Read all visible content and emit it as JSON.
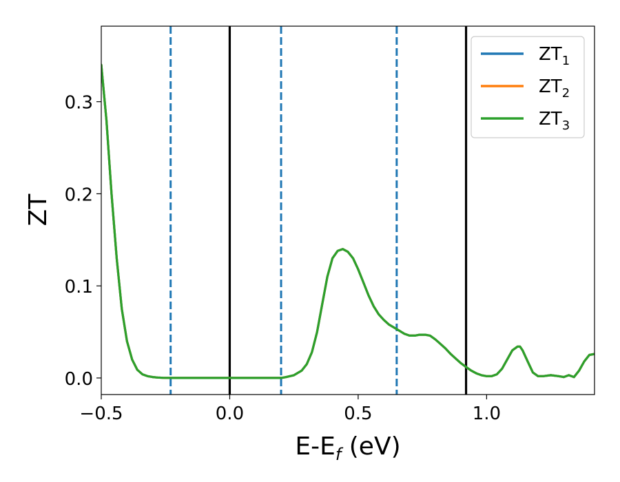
{
  "chart_data": {
    "type": "line",
    "xlabel_main": "E-E",
    "xlabel_sub": "f",
    "xlabel_tail": " (eV)",
    "ylabel": "ZT",
    "xlim": [
      -0.5,
      1.42
    ],
    "ylim": [
      -0.018,
      0.382
    ],
    "x_ticks": [
      {
        "value": -0.5,
        "label": "−0.5"
      },
      {
        "value": 0.0,
        "label": "0.0"
      },
      {
        "value": 0.5,
        "label": "0.5"
      },
      {
        "value": 1.0,
        "label": "1.0"
      }
    ],
    "y_ticks": [
      {
        "value": 0.0,
        "label": "0.0"
      },
      {
        "value": 0.1,
        "label": "0.1"
      },
      {
        "value": 0.2,
        "label": "0.2"
      },
      {
        "value": 0.3,
        "label": "0.3"
      }
    ],
    "grid": false,
    "legend_position": "top-right",
    "vlines": [
      {
        "x": -0.23,
        "style": "dashed",
        "color": "#1f77b4"
      },
      {
        "x": 0.0,
        "style": "solid",
        "color": "#000000"
      },
      {
        "x": 0.2,
        "style": "dashed",
        "color": "#1f77b4"
      },
      {
        "x": 0.65,
        "style": "dashed",
        "color": "#1f77b4"
      },
      {
        "x": 0.92,
        "style": "solid",
        "color": "#000000"
      }
    ],
    "series": [
      {
        "name": "ZT",
        "sub": "1",
        "color": "#1f77b4",
        "x": [
          -0.5,
          -0.48,
          -0.46,
          -0.44,
          -0.42,
          -0.4,
          -0.38,
          -0.36,
          -0.34,
          -0.32,
          -0.3,
          -0.28,
          -0.26,
          -0.24,
          -0.22,
          -0.2,
          -0.1,
          0.0,
          0.1,
          0.2,
          0.22,
          0.25,
          0.28,
          0.3,
          0.32,
          0.34,
          0.36,
          0.38,
          0.4,
          0.42,
          0.44,
          0.46,
          0.48,
          0.5,
          0.52,
          0.54,
          0.56,
          0.58,
          0.6,
          0.62,
          0.65,
          0.68,
          0.7,
          0.72,
          0.74,
          0.76,
          0.78,
          0.8,
          0.82,
          0.84,
          0.86,
          0.88,
          0.9,
          0.92,
          0.94,
          0.96,
          0.98,
          1.0,
          1.02,
          1.04,
          1.06,
          1.08,
          1.1,
          1.12,
          1.13,
          1.14,
          1.16,
          1.18,
          1.2,
          1.22,
          1.25,
          1.28,
          1.3,
          1.32,
          1.34,
          1.36,
          1.38,
          1.4,
          1.42
        ],
        "y": [
          0.34,
          0.28,
          0.2,
          0.13,
          0.075,
          0.04,
          0.02,
          0.009,
          0.004,
          0.002,
          0.001,
          0.0005,
          0.0002,
          0.0001,
          0,
          0,
          0,
          0,
          0,
          0,
          0.001,
          0.003,
          0.008,
          0.015,
          0.028,
          0.05,
          0.08,
          0.11,
          0.13,
          0.138,
          0.14,
          0.137,
          0.13,
          0.118,
          0.104,
          0.09,
          0.078,
          0.069,
          0.063,
          0.058,
          0.053,
          0.048,
          0.046,
          0.046,
          0.047,
          0.047,
          0.046,
          0.042,
          0.037,
          0.032,
          0.026,
          0.021,
          0.016,
          0.012,
          0.008,
          0.005,
          0.003,
          0.002,
          0.002,
          0.004,
          0.01,
          0.02,
          0.03,
          0.034,
          0.034,
          0.03,
          0.018,
          0.006,
          0.002,
          0.002,
          0.003,
          0.002,
          0.001,
          0.003,
          0.001,
          0.008,
          0.018,
          0.025,
          0.026
        ]
      },
      {
        "name": "ZT",
        "sub": "2",
        "color": "#ff7f0e",
        "x": [
          -0.5,
          -0.48,
          -0.46,
          -0.44,
          -0.42,
          -0.4,
          -0.38,
          -0.36,
          -0.34,
          -0.32,
          -0.3,
          -0.28,
          -0.26,
          -0.24,
          -0.22,
          -0.2,
          -0.1,
          0.0,
          0.1,
          0.2,
          0.22,
          0.25,
          0.28,
          0.3,
          0.32,
          0.34,
          0.36,
          0.38,
          0.4,
          0.42,
          0.44,
          0.46,
          0.48,
          0.5,
          0.52,
          0.54,
          0.56,
          0.58,
          0.6,
          0.62,
          0.65,
          0.68,
          0.7,
          0.72,
          0.74,
          0.76,
          0.78,
          0.8,
          0.82,
          0.84,
          0.86,
          0.88,
          0.9,
          0.92,
          0.94,
          0.96,
          0.98,
          1.0,
          1.02,
          1.04,
          1.06,
          1.08,
          1.1,
          1.12,
          1.13,
          1.14,
          1.16,
          1.18,
          1.2,
          1.22,
          1.25,
          1.28,
          1.3,
          1.32,
          1.34,
          1.36,
          1.38,
          1.4,
          1.42
        ],
        "y": [
          0.34,
          0.28,
          0.2,
          0.13,
          0.075,
          0.04,
          0.02,
          0.009,
          0.004,
          0.002,
          0.001,
          0.0005,
          0.0002,
          0.0001,
          0,
          0,
          0,
          0,
          0,
          0,
          0.001,
          0.003,
          0.008,
          0.015,
          0.028,
          0.05,
          0.08,
          0.11,
          0.13,
          0.138,
          0.14,
          0.137,
          0.13,
          0.118,
          0.104,
          0.09,
          0.078,
          0.069,
          0.063,
          0.058,
          0.053,
          0.048,
          0.046,
          0.046,
          0.047,
          0.047,
          0.046,
          0.042,
          0.037,
          0.032,
          0.026,
          0.021,
          0.016,
          0.012,
          0.008,
          0.005,
          0.003,
          0.002,
          0.002,
          0.004,
          0.01,
          0.02,
          0.03,
          0.034,
          0.034,
          0.03,
          0.018,
          0.006,
          0.002,
          0.002,
          0.003,
          0.002,
          0.001,
          0.003,
          0.001,
          0.008,
          0.018,
          0.025,
          0.026
        ]
      },
      {
        "name": "ZT",
        "sub": "3",
        "color": "#2ca02c",
        "x": [
          -0.5,
          -0.48,
          -0.46,
          -0.44,
          -0.42,
          -0.4,
          -0.38,
          -0.36,
          -0.34,
          -0.32,
          -0.3,
          -0.28,
          -0.26,
          -0.24,
          -0.22,
          -0.2,
          -0.1,
          0.0,
          0.1,
          0.2,
          0.22,
          0.25,
          0.28,
          0.3,
          0.32,
          0.34,
          0.36,
          0.38,
          0.4,
          0.42,
          0.44,
          0.46,
          0.48,
          0.5,
          0.52,
          0.54,
          0.56,
          0.58,
          0.6,
          0.62,
          0.65,
          0.68,
          0.7,
          0.72,
          0.74,
          0.76,
          0.78,
          0.8,
          0.82,
          0.84,
          0.86,
          0.88,
          0.9,
          0.92,
          0.94,
          0.96,
          0.98,
          1.0,
          1.02,
          1.04,
          1.06,
          1.08,
          1.1,
          1.12,
          1.13,
          1.14,
          1.16,
          1.18,
          1.2,
          1.22,
          1.25,
          1.28,
          1.3,
          1.32,
          1.34,
          1.36,
          1.38,
          1.4,
          1.42
        ],
        "y": [
          0.34,
          0.28,
          0.2,
          0.13,
          0.075,
          0.04,
          0.02,
          0.009,
          0.004,
          0.002,
          0.001,
          0.0005,
          0.0002,
          0.0001,
          0,
          0,
          0,
          0,
          0,
          0,
          0.001,
          0.003,
          0.008,
          0.015,
          0.028,
          0.05,
          0.08,
          0.11,
          0.13,
          0.138,
          0.14,
          0.137,
          0.13,
          0.118,
          0.104,
          0.09,
          0.078,
          0.069,
          0.063,
          0.058,
          0.053,
          0.048,
          0.046,
          0.046,
          0.047,
          0.047,
          0.046,
          0.042,
          0.037,
          0.032,
          0.026,
          0.021,
          0.016,
          0.012,
          0.008,
          0.005,
          0.003,
          0.002,
          0.002,
          0.004,
          0.01,
          0.02,
          0.03,
          0.034,
          0.034,
          0.03,
          0.018,
          0.006,
          0.002,
          0.002,
          0.003,
          0.002,
          0.001,
          0.003,
          0.001,
          0.008,
          0.018,
          0.025,
          0.026
        ]
      }
    ]
  }
}
